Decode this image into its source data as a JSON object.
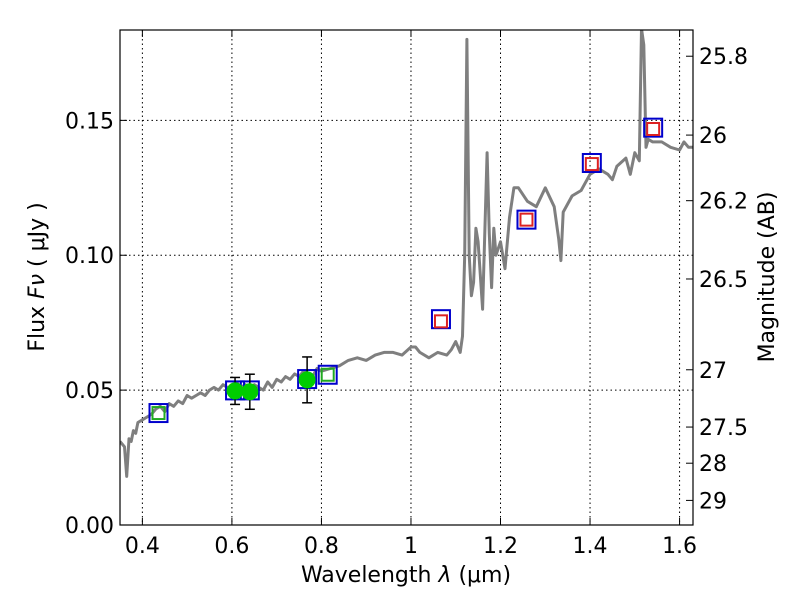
{
  "chart_data": {
    "type": "scatter",
    "title": "",
    "xlabel_prefix": "Wavelength  ",
    "xlabel_symbol": "λ",
    "xlabel_unit": " (μm)",
    "ylabel_prefix": "Flux  ",
    "ylabel_symbol": "Fν",
    "ylabel_unit": "  ( μJy )",
    "y2label": "Magnitude (AB)",
    "xlim": [
      0.35,
      1.63
    ],
    "ylim": [
      0.0,
      0.1835
    ],
    "grid": true,
    "x_ticks": [
      {
        "value": 0.4,
        "label": "0.4"
      },
      {
        "value": 0.6,
        "label": "0.6"
      },
      {
        "value": 0.8,
        "label": "0.8"
      },
      {
        "value": 1.0,
        "label": "1"
      },
      {
        "value": 1.2,
        "label": "1.2"
      },
      {
        "value": 1.4,
        "label": "1.4"
      },
      {
        "value": 1.6,
        "label": "1.6"
      }
    ],
    "y_ticks": [
      {
        "value": 0.0,
        "label": "0.00"
      },
      {
        "value": 0.05,
        "label": "0.05"
      },
      {
        "value": 0.1,
        "label": "0.10"
      },
      {
        "value": 0.15,
        "label": "0.15"
      }
    ],
    "y2_ticks": [
      {
        "mag": 25.8,
        "label": "25.8"
      },
      {
        "mag": 26.0,
        "label": "26"
      },
      {
        "mag": 26.2,
        "label": "26.2"
      },
      {
        "mag": 26.5,
        "label": "26.5"
      },
      {
        "mag": 27.0,
        "label": "27"
      },
      {
        "mag": 27.5,
        "label": "27.5"
      },
      {
        "mag": 28.0,
        "label": "28"
      },
      {
        "mag": 29.0,
        "label": "29"
      }
    ],
    "y2_zeropoint_mag": 23.9,
    "spectrum": {
      "color": "#7f7f7f",
      "x": [
        0.35,
        0.36,
        0.365,
        0.37,
        0.375,
        0.38,
        0.385,
        0.39,
        0.4,
        0.41,
        0.42,
        0.43,
        0.44,
        0.45,
        0.46,
        0.47,
        0.48,
        0.49,
        0.5,
        0.51,
        0.52,
        0.53,
        0.54,
        0.55,
        0.56,
        0.57,
        0.58,
        0.59,
        0.6,
        0.61,
        0.62,
        0.63,
        0.64,
        0.65,
        0.66,
        0.67,
        0.68,
        0.69,
        0.7,
        0.71,
        0.72,
        0.73,
        0.74,
        0.75,
        0.76,
        0.77,
        0.78,
        0.79,
        0.8,
        0.82,
        0.84,
        0.86,
        0.88,
        0.9,
        0.92,
        0.94,
        0.96,
        0.98,
        1.0,
        1.01,
        1.02,
        1.04,
        1.06,
        1.08,
        1.09,
        1.1,
        1.11,
        1.115,
        1.12,
        1.125,
        1.13,
        1.135,
        1.14,
        1.145,
        1.15,
        1.16,
        1.17,
        1.175,
        1.18,
        1.185,
        1.19,
        1.2,
        1.21,
        1.22,
        1.23,
        1.24,
        1.26,
        1.28,
        1.3,
        1.32,
        1.33,
        1.335,
        1.34,
        1.36,
        1.38,
        1.4,
        1.42,
        1.44,
        1.45,
        1.46,
        1.48,
        1.49,
        1.5,
        1.51,
        1.515,
        1.52,
        1.525,
        1.53,
        1.54,
        1.56,
        1.58,
        1.6,
        1.61,
        1.62,
        1.63
      ],
      "y": [
        0.031,
        0.029,
        0.018,
        0.032,
        0.031,
        0.035,
        0.034,
        0.038,
        0.039,
        0.04,
        0.041,
        0.043,
        0.044,
        0.042,
        0.045,
        0.044,
        0.046,
        0.045,
        0.048,
        0.047,
        0.048,
        0.049,
        0.048,
        0.05,
        0.051,
        0.05,
        0.052,
        0.051,
        0.049,
        0.053,
        0.051,
        0.052,
        0.05,
        0.052,
        0.051,
        0.05,
        0.053,
        0.051,
        0.054,
        0.053,
        0.055,
        0.054,
        0.056,
        0.055,
        0.057,
        0.056,
        0.055,
        0.058,
        0.057,
        0.058,
        0.059,
        0.061,
        0.062,
        0.061,
        0.063,
        0.064,
        0.064,
        0.063,
        0.066,
        0.066,
        0.064,
        0.062,
        0.064,
        0.063,
        0.065,
        0.068,
        0.064,
        0.07,
        0.1,
        0.18,
        0.1,
        0.085,
        0.09,
        0.11,
        0.105,
        0.08,
        0.138,
        0.108,
        0.088,
        0.11,
        0.1,
        0.105,
        0.095,
        0.114,
        0.125,
        0.125,
        0.12,
        0.118,
        0.125,
        0.118,
        0.106,
        0.098,
        0.116,
        0.122,
        0.124,
        0.13,
        0.132,
        0.13,
        0.128,
        0.133,
        0.136,
        0.13,
        0.138,
        0.135,
        0.184,
        0.178,
        0.14,
        0.143,
        0.142,
        0.142,
        0.14,
        0.139,
        0.142,
        0.14,
        0.14
      ]
    },
    "series": [
      {
        "marker": "square-open",
        "color": "#0000cc",
        "points": [
          [
            0.436,
            0.0415
          ],
          [
            0.607,
            0.0499
          ],
          [
            0.64,
            0.0499
          ],
          [
            0.768,
            0.0541
          ],
          [
            0.814,
            0.0557
          ],
          [
            1.067,
            0.0763
          ],
          [
            1.258,
            0.1132
          ],
          [
            1.404,
            0.1342
          ],
          [
            1.541,
            0.1473
          ]
        ]
      },
      {
        "marker": "square-open",
        "color": "#22aa22",
        "points": [
          [
            0.436,
            0.0415
          ],
          [
            0.814,
            0.0557
          ]
        ]
      },
      {
        "marker": "square-open",
        "color": "#dd2222",
        "points": [
          [
            1.067,
            0.0755
          ],
          [
            1.258,
            0.1132
          ],
          [
            1.404,
            0.1338
          ],
          [
            1.541,
            0.1468
          ]
        ]
      },
      {
        "marker": "circle-filled",
        "color": "#00cc00",
        "points": [
          [
            0.607,
            0.0497,
            0.005
          ],
          [
            0.64,
            0.0494,
            0.0065
          ],
          [
            0.768,
            0.0538,
            0.0085
          ]
        ]
      }
    ]
  }
}
